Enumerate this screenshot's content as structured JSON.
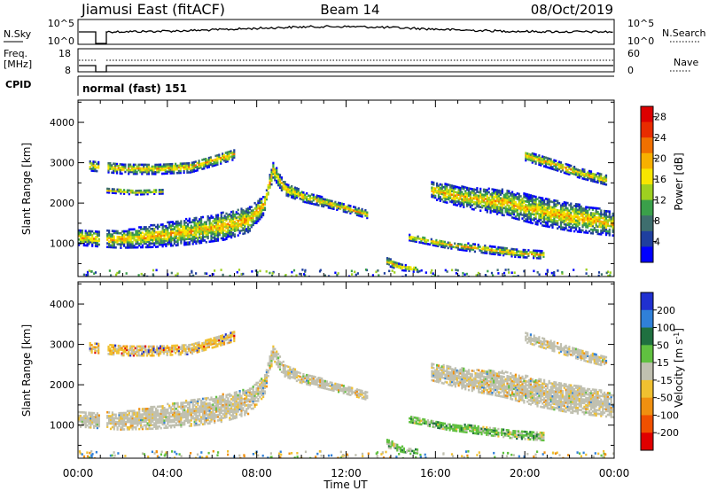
{
  "header": {
    "station": "Jiamusi East (fitACF)",
    "beam": "Beam 14",
    "date": "08/Oct/2019"
  },
  "panels": {
    "nsky": {
      "label": "N.Sky",
      "left_ticks": [
        "10^5",
        "10^0"
      ],
      "right_ticks": [
        "10^5",
        "10^0"
      ],
      "right_label": "N.Search"
    },
    "freq": {
      "label_line1": "Freq.",
      "label_line2": "[MHz]",
      "left_ticks": [
        "18",
        "8"
      ],
      "right_ticks": [
        "60",
        "0"
      ],
      "right_label": "Nave"
    },
    "cpid": {
      "label": "CPID",
      "text": "normal (fast) 151"
    }
  },
  "chart_data": [
    {
      "type": "heatmap",
      "name": "power",
      "ylabel": "Slant Range [km]",
      "xlabel": "",
      "x_ticks": [
        "00:00",
        "04:00",
        "08:00",
        "12:00",
        "16:00",
        "20:00",
        "00:00"
      ],
      "xlim_hours": [
        0,
        24
      ],
      "y_ticks": [
        1000,
        2000,
        3000,
        4000
      ],
      "ylim": [
        180,
        4550
      ],
      "colorbar_label": "Power [dB]",
      "colorbar_ticks": [
        "4",
        "8",
        "12",
        "16",
        "20",
        "24",
        "28"
      ],
      "colorbar_range": [
        0,
        30
      ],
      "colors": [
        "#0000ff",
        "#1f3f9f",
        "#3e6e6e",
        "#3aa04a",
        "#9ed020",
        "#f7e600",
        "#f7b000",
        "#f07000",
        "#e82c00",
        "#dd0000"
      ],
      "echo_bands": [
        {
          "t": [
            0,
            1.8,
            3.4,
            5.0,
            6.5,
            7.6,
            8.3,
            8.7,
            9.2,
            10.0,
            11.0,
            12.0,
            12.9
          ],
          "center_km": [
            1180,
            1130,
            1220,
            1330,
            1460,
            1620,
            2000,
            2850,
            2400,
            2200,
            2050,
            1900,
            1750
          ],
          "width_km": [
            380,
            420,
            560,
            640,
            680,
            620,
            480,
            380,
            320,
            260,
            220,
            200,
            180
          ]
        },
        {
          "t": [
            0.5,
            2.0,
            3.5,
            5.0,
            6.0,
            7.0
          ],
          "center_km": [
            2950,
            2880,
            2880,
            2920,
            3080,
            3250
          ],
          "width_km": [
            230,
            250,
            260,
            260,
            260,
            260
          ]
        },
        {
          "t": [
            1.2,
            2.5,
            3.8
          ],
          "center_km": [
            2350,
            2300,
            2320
          ],
          "width_km": [
            110,
            120,
            110
          ]
        },
        {
          "t": [
            13.8,
            14.5,
            15.2
          ],
          "center_km": [
            580,
            430,
            390
          ],
          "width_km": [
            200,
            140,
            120
          ]
        },
        {
          "t": [
            14.8,
            16.5,
            18.0,
            19.5,
            20.8
          ],
          "center_km": [
            1180,
            1000,
            900,
            800,
            750
          ],
          "width_km": [
            150,
            170,
            190,
            200,
            190
          ]
        },
        {
          "t": [
            15.8,
            17.5,
            19.0,
            20.5,
            22.0,
            23.3,
            24.0
          ],
          "center_km": [
            2350,
            2150,
            2050,
            1850,
            1700,
            1580,
            1500
          ],
          "width_km": [
            420,
            520,
            640,
            700,
            720,
            640,
            560
          ]
        },
        {
          "t": [
            20.0,
            21.2,
            22.4,
            23.6
          ],
          "center_km": [
            3200,
            3000,
            2780,
            2600
          ],
          "width_km": [
            230,
            250,
            240,
            230
          ]
        }
      ]
    },
    {
      "type": "heatmap",
      "name": "velocity",
      "ylabel": "Slant Range [km]",
      "xlabel": "Time UT",
      "x_ticks": [
        "00:00",
        "04:00",
        "08:00",
        "12:00",
        "16:00",
        "20:00",
        "00:00"
      ],
      "xlim_hours": [
        0,
        24
      ],
      "y_ticks": [
        1000,
        2000,
        3000,
        4000
      ],
      "ylim": [
        180,
        4550
      ],
      "colorbar_label": "Velocity [m s^-1]",
      "colorbar_ticks": [
        "200",
        "100",
        "50",
        "15",
        "-15",
        "-50",
        "-100",
        "-200"
      ],
      "colors": [
        "#2030d0",
        "#3080d8",
        "#1f7040",
        "#60c040",
        "#c0c0b0",
        "#f0c030",
        "#f09010",
        "#f05000",
        "#e00000"
      ],
      "echo_bands": [
        {
          "t": [
            0,
            1.8,
            3.4,
            5.0,
            6.5,
            7.6,
            8.3,
            8.7,
            9.2,
            10.0,
            11.0,
            12.0,
            12.9
          ],
          "center_km": [
            1180,
            1130,
            1220,
            1330,
            1460,
            1620,
            2000,
            2850,
            2400,
            2200,
            2050,
            1900,
            1750
          ],
          "width_km": [
            380,
            420,
            560,
            640,
            680,
            620,
            480,
            380,
            320,
            260,
            220,
            200,
            180
          ],
          "dominant": "gray"
        },
        {
          "t": [
            0.5,
            2.0,
            3.5,
            5.0,
            6.0,
            7.0
          ],
          "center_km": [
            2950,
            2880,
            2880,
            2920,
            3080,
            3250
          ],
          "width_km": [
            230,
            250,
            260,
            260,
            260,
            260
          ],
          "dominant": "orange"
        },
        {
          "t": [
            13.8,
            14.5,
            15.2
          ],
          "center_km": [
            580,
            430,
            390
          ],
          "width_km": [
            200,
            140,
            120
          ],
          "dominant": "green"
        },
        {
          "t": [
            14.8,
            16.5,
            18.0,
            19.5,
            20.8
          ],
          "center_km": [
            1180,
            1000,
            900,
            800,
            750
          ],
          "width_km": [
            150,
            170,
            190,
            200,
            190
          ],
          "dominant": "green"
        },
        {
          "t": [
            15.8,
            17.5,
            19.0,
            20.5,
            22.0,
            23.3,
            24.0
          ],
          "center_km": [
            2350,
            2150,
            2050,
            1850,
            1700,
            1580,
            1500
          ],
          "width_km": [
            420,
            520,
            640,
            700,
            720,
            640,
            560
          ],
          "dominant": "gray"
        },
        {
          "t": [
            20.0,
            21.2,
            22.4,
            23.6
          ],
          "center_km": [
            3200,
            3000,
            2780,
            2600
          ],
          "width_km": [
            230,
            250,
            240,
            230
          ],
          "dominant": "gray"
        }
      ]
    }
  ]
}
